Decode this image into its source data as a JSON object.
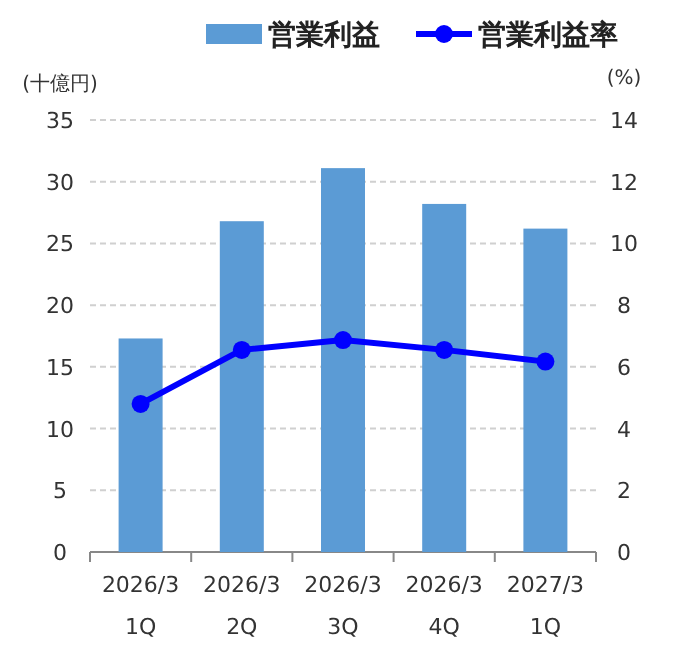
{
  "chart_data": {
    "type": "bar",
    "categories": [
      "2026/3 1Q",
      "2026/3 2Q",
      "2026/3 3Q",
      "2026/3 4Q",
      "2027/3 1Q"
    ],
    "series": [
      {
        "name": "営業利益",
        "color": "#5b9bd5",
        "values": [
          17.3,
          26.8,
          31.1,
          28.2,
          26.2
        ]
      },
      {
        "name": "営業利益率",
        "type": "line",
        "axis": "y2",
        "color": "#0000ff",
        "values": [
          4.8,
          6.55,
          6.87,
          6.55,
          6.17
        ]
      }
    ],
    "ylabel": "(十億円)",
    "y2label": "(%)",
    "ylim": [
      0,
      35
    ],
    "yticks": [
      0,
      5,
      10,
      15,
      20,
      25,
      30,
      35
    ],
    "y2lim": [
      0,
      14
    ],
    "y2ticks": [
      0,
      2,
      4,
      6,
      8,
      10,
      12,
      14
    ],
    "grid": "y",
    "legend": "top",
    "marker": "circle",
    "line_style": "solid"
  }
}
